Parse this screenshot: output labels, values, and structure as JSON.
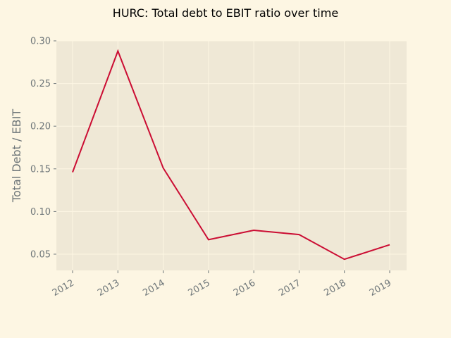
{
  "chart_data": {
    "type": "line",
    "title": "HURC: Total debt to EBIT ratio over time",
    "xlabel": "",
    "ylabel": "Total Debt / EBIT",
    "x": [
      "2012",
      "2013",
      "2014",
      "2015",
      "2016",
      "2017",
      "2018",
      "2019"
    ],
    "series": [
      {
        "values": [
          0.146,
          0.288,
          0.151,
          0.067,
          0.078,
          0.073,
          0.044,
          0.061
        ]
      }
    ],
    "yticks": [
      "0.05",
      "0.10",
      "0.15",
      "0.20",
      "0.25",
      "0.30"
    ],
    "ylim": [
      0.031,
      0.3
    ],
    "grid": true,
    "legend": "none"
  },
  "colors": {
    "background": "#fdf6e3",
    "plot_area": "#efe8d6",
    "grid": "#fdf6e3",
    "line": "#cb0d33",
    "tick_text": "#6e7679"
  }
}
